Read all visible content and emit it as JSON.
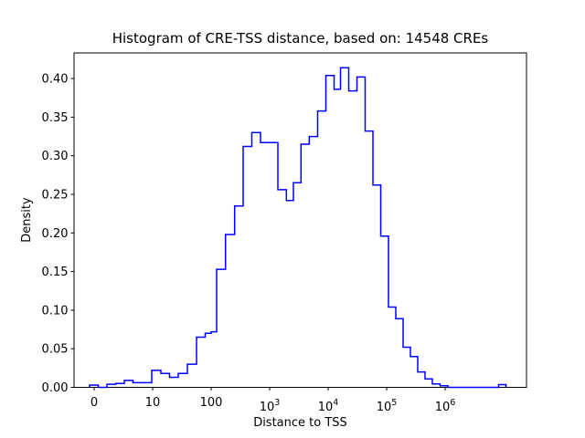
{
  "figure": {
    "background": "#ffffff",
    "axes_facecolor": "#ffffff",
    "spine_color": "#000000"
  },
  "chart_data": {
    "type": "histogram-step",
    "title": "Histogram of CRE-TSS distance, based on: 14548 CREs",
    "cre_count": "14548",
    "xlabel": "Distance to TSS",
    "ylabel": "Density",
    "line_color": "#0000ff",
    "legend": null,
    "grid": false,
    "x_axis": {
      "scale": "symlog (decade coordinate u: u=0 at tick '0', u=1 at '10', one decade per unit)",
      "range_u": [
        -0.34,
        7.39
      ],
      "ticks": [
        {
          "u": 0,
          "text": "0"
        },
        {
          "u": 1,
          "text": "10"
        },
        {
          "u": 2,
          "text": "100"
        },
        {
          "u": 3,
          "base": "10",
          "exp": "3"
        },
        {
          "u": 4,
          "base": "10",
          "exp": "4"
        },
        {
          "u": 5,
          "base": "10",
          "exp": "5"
        },
        {
          "u": 6,
          "base": "10",
          "exp": "6"
        }
      ]
    },
    "y_axis": {
      "range": [
        0.0,
        0.4333
      ],
      "tick_values": [
        0.0,
        0.05,
        0.1,
        0.15,
        0.2,
        0.25,
        0.3,
        0.35,
        0.4
      ],
      "tick_labels": [
        "0.00",
        "0.05",
        "0.10",
        "0.15",
        "0.20",
        "0.25",
        "0.30",
        "0.35",
        "0.40"
      ]
    },
    "bins": {
      "comment": "step histogram; edges in decade coordinate u, densities per bin",
      "edges_u": [
        -0.078,
        0.07,
        0.219,
        0.367,
        0.516,
        0.664,
        0.984,
        1.141,
        1.289,
        1.438,
        1.594,
        1.75,
        1.898,
        2.0,
        2.094,
        2.245,
        2.402,
        2.547,
        2.695,
        2.844,
        3.141,
        3.286,
        3.406,
        3.536,
        3.677,
        3.82,
        3.961,
        4.102,
        4.211,
        4.352,
        4.492,
        4.633,
        4.766,
        4.898,
        5.031,
        5.156,
        5.281,
        5.406,
        5.531,
        5.656,
        5.781,
        5.914,
        6.047,
        6.914,
        7.039
      ],
      "densities": [
        0.003,
        0.0,
        0.004,
        0.005,
        0.009,
        0.006,
        0.022,
        0.018,
        0.013,
        0.018,
        0.03,
        0.065,
        0.07,
        0.072,
        0.153,
        0.198,
        0.235,
        0.312,
        0.33,
        0.317,
        0.256,
        0.242,
        0.265,
        0.315,
        0.325,
        0.358,
        0.404,
        0.386,
        0.414,
        0.384,
        0.402,
        0.332,
        0.262,
        0.196,
        0.104,
        0.089,
        0.052,
        0.04,
        0.02,
        0.011,
        0.0045,
        0.002,
        0.0,
        0.0035
      ]
    }
  }
}
